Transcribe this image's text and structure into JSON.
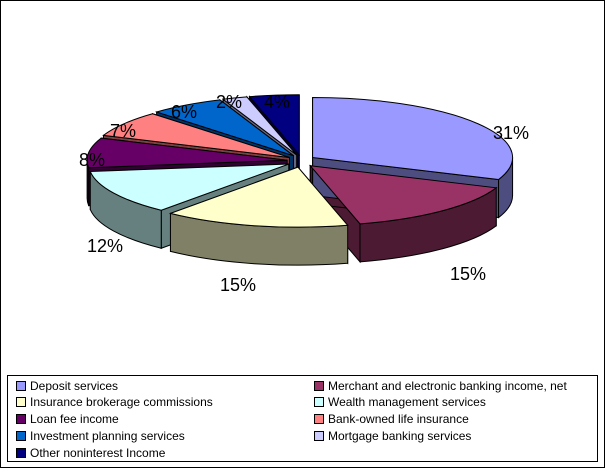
{
  "chart_data": {
    "type": "pie",
    "style": "3d-exploded",
    "slices": [
      {
        "label": "Deposit services",
        "value": 31,
        "display": "31%",
        "color": "#9999ff",
        "side_color": "#4d4d80"
      },
      {
        "label": "Merchant and electronic banking income, net",
        "value": 15,
        "display": "15%",
        "color": "#993366",
        "side_color": "#4d1a33"
      },
      {
        "label": "Insurance brokerage commissions",
        "value": 15,
        "display": "15%",
        "color": "#ffffcc",
        "side_color": "#808066"
      },
      {
        "label": "Wealth management services",
        "value": 12,
        "display": "12%",
        "color": "#ccffff",
        "side_color": "#668080"
      },
      {
        "label": "Loan fee income",
        "value": 8,
        "display": "8%",
        "color": "#660066",
        "side_color": "#330033"
      },
      {
        "label": "Bank-owned life insurance",
        "value": 7,
        "display": "7%",
        "color": "#ff8080",
        "side_color": "#804040"
      },
      {
        "label": "Investment planning services",
        "value": 6,
        "display": "6%",
        "color": "#0066cc",
        "side_color": "#003366"
      },
      {
        "label": "Mortgage banking services",
        "value": 2,
        "display": "2%",
        "color": "#ccccff",
        "side_color": "#666680"
      },
      {
        "label": "Other noninterest Income",
        "value": 4,
        "display": "4%",
        "color": "#000080",
        "side_color": "#000040"
      }
    ],
    "legend_position": "bottom",
    "title": ""
  }
}
